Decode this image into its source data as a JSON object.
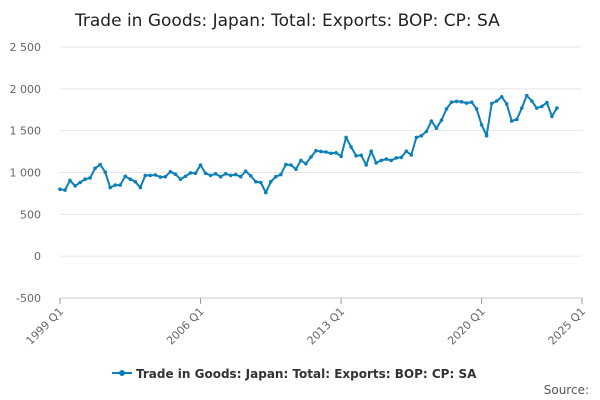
{
  "chart_data": {
    "type": "line",
    "title": "Trade in Goods: Japan: Total: Exports: BOP: CP: SA",
    "xlabel": "",
    "ylabel": "",
    "ylim": [
      -500,
      2500
    ],
    "y_ticks": [
      "2 500",
      "2 000",
      "1 500",
      "1 000",
      "500",
      "0",
      "-500"
    ],
    "y_tick_values": [
      2500,
      2000,
      1500,
      1000,
      500,
      0,
      -500
    ],
    "x_ticks": [
      "1999 Q1",
      "2006 Q1",
      "2013 Q1",
      "2020 Q1",
      "2025 Q1"
    ],
    "x_start": "1999 Q1",
    "x_end": "2025 Q1",
    "legend_position": "bottom",
    "color": "#0e80b8",
    "series": [
      {
        "name": "Trade in Goods: Japan: Total: Exports: BOP: CP: SA",
        "values": [
          800,
          790,
          905,
          840,
          880,
          920,
          935,
          1050,
          1095,
          1005,
          820,
          850,
          850,
          955,
          920,
          890,
          820,
          965,
          965,
          970,
          945,
          950,
          1010,
          980,
          920,
          955,
          995,
          990,
          1090,
          990,
          965,
          985,
          950,
          985,
          965,
          975,
          950,
          1015,
          960,
          890,
          880,
          760,
          890,
          950,
          975,
          1095,
          1090,
          1040,
          1145,
          1105,
          1185,
          1260,
          1250,
          1245,
          1230,
          1235,
          1195,
          1420,
          1305,
          1200,
          1205,
          1090,
          1255,
          1115,
          1145,
          1160,
          1145,
          1175,
          1180,
          1255,
          1210,
          1420,
          1440,
          1490,
          1615,
          1530,
          1625,
          1760,
          1840,
          1850,
          1845,
          1830,
          1840,
          1760,
          1570,
          1440,
          1825,
          1855,
          1905,
          1820,
          1615,
          1635,
          1770,
          1920,
          1855,
          1770,
          1790,
          1835,
          1670,
          1770
        ]
      }
    ]
  },
  "legend": {
    "label": "Trade in Goods: Japan: Total: Exports: BOP: CP: SA"
  },
  "footer": {
    "source": "Source:"
  }
}
